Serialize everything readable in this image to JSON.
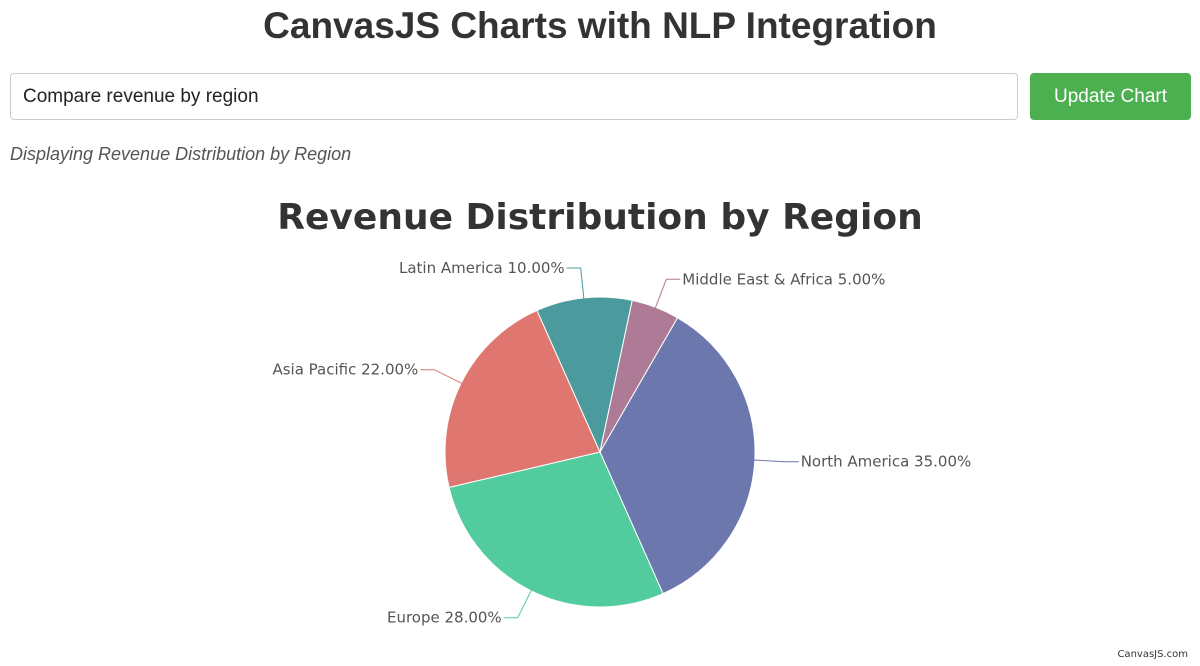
{
  "header": {
    "title": "CanvasJS Charts with NLP Integration"
  },
  "query": {
    "value": "Compare revenue by region"
  },
  "toolbar": {
    "update_label": "Update Chart"
  },
  "status": {
    "text": "Displaying Revenue Distribution by Region"
  },
  "chart_data": {
    "type": "pie",
    "title": "Revenue Distribution by Region",
    "label_format": "{label} {value}%",
    "slices": [
      {
        "label": "North America",
        "value": 35.0,
        "color": "#6b77ad"
      },
      {
        "label": "Europe",
        "value": 28.0,
        "color": "#52cc9e"
      },
      {
        "label": "Asia Pacific",
        "value": 22.0,
        "color": "#df7670"
      },
      {
        "label": "Latin America",
        "value": 10.0,
        "color": "#4b9b9e"
      },
      {
        "label": "Middle East & Africa",
        "value": 5.0,
        "color": "#ad7b95"
      }
    ]
  },
  "footer": {
    "credit": "CanvasJS.com"
  }
}
